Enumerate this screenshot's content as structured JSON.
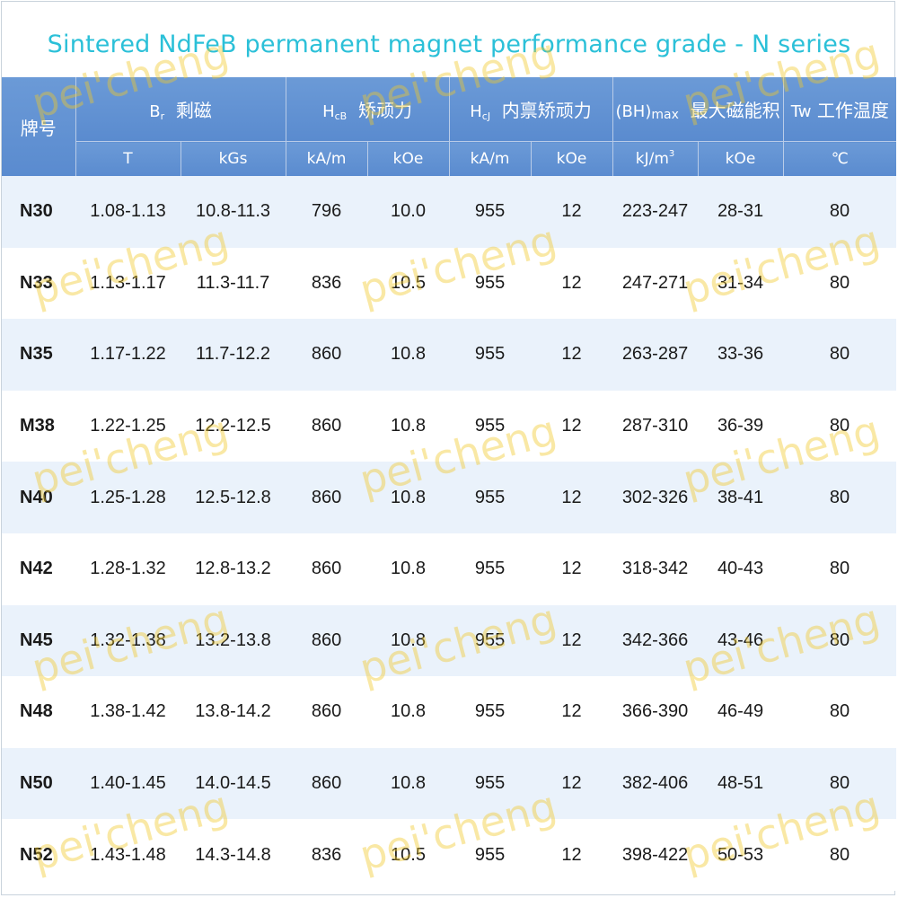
{
  "title": "Sintered NdFeB permanent magnet performance grade - N series",
  "header": {
    "grade": "牌号",
    "br_symbol": "B",
    "br_sub": "r",
    "br_label": "剩磁",
    "hcb_symbol": "H",
    "hcb_sub": "cB",
    "hcb_label": "矫顽力",
    "hcj_symbol": "H",
    "hcj_sub": "cJ",
    "hcj_label": "内禀矫顽力",
    "bh_symbol": "(BH)",
    "bh_sub": "max",
    "bh_label": "最大磁能积",
    "tw_symbol": "Tw",
    "tw_label": "工作温度",
    "units": [
      "T",
      "kGs",
      "kA/m",
      "kOe",
      "kA/m",
      "kOe",
      "kJ/m",
      "kOe",
      "℃"
    ],
    "kjm_sup": "3"
  },
  "rows": [
    [
      "N30",
      "1.08-1.13",
      "10.8-11.3",
      "796",
      "10.0",
      "955",
      "12",
      "223-247",
      "28-31",
      "80"
    ],
    [
      "N33",
      "1.13-1.17",
      "11.3-11.7",
      "836",
      "10.5",
      "955",
      "12",
      "247-271",
      "31-34",
      "80"
    ],
    [
      "N35",
      "1.17-1.22",
      "11.7-12.2",
      "860",
      "10.8",
      "955",
      "12",
      "263-287",
      "33-36",
      "80"
    ],
    [
      "M38",
      "1.22-1.25",
      "12.2-12.5",
      "860",
      "10.8",
      "955",
      "12",
      "287-310",
      "36-39",
      "80"
    ],
    [
      "N40",
      "1.25-1.28",
      "12.5-12.8",
      "860",
      "10.8",
      "955",
      "12",
      "302-326",
      "38-41",
      "80"
    ],
    [
      "N42",
      "1.28-1.32",
      "12.8-13.2",
      "860",
      "10.8",
      "955",
      "12",
      "318-342",
      "40-43",
      "80"
    ],
    [
      "N45",
      "1.32-1.38",
      "13.2-13.8",
      "860",
      "10.8",
      "955",
      "12",
      "342-366",
      "43-46",
      "80"
    ],
    [
      "N48",
      "1.38-1.42",
      "13.8-14.2",
      "860",
      "10.8",
      "955",
      "12",
      "366-390",
      "46-49",
      "80"
    ],
    [
      "N50",
      "1.40-1.45",
      "14.0-14.5",
      "860",
      "10.8",
      "955",
      "12",
      "382-406",
      "48-51",
      "80"
    ],
    [
      "N52",
      "1.43-1.48",
      "14.3-14.8",
      "836",
      "10.5",
      "955",
      "12",
      "398-422",
      "50-53",
      "80"
    ]
  ],
  "watermark": "pei'cheng",
  "colors": {
    "title": "#2bc0d8",
    "header_bg": "#5a8bcf",
    "row_alt_bg": "#eaf2fb",
    "watermark": "#f0c828"
  }
}
